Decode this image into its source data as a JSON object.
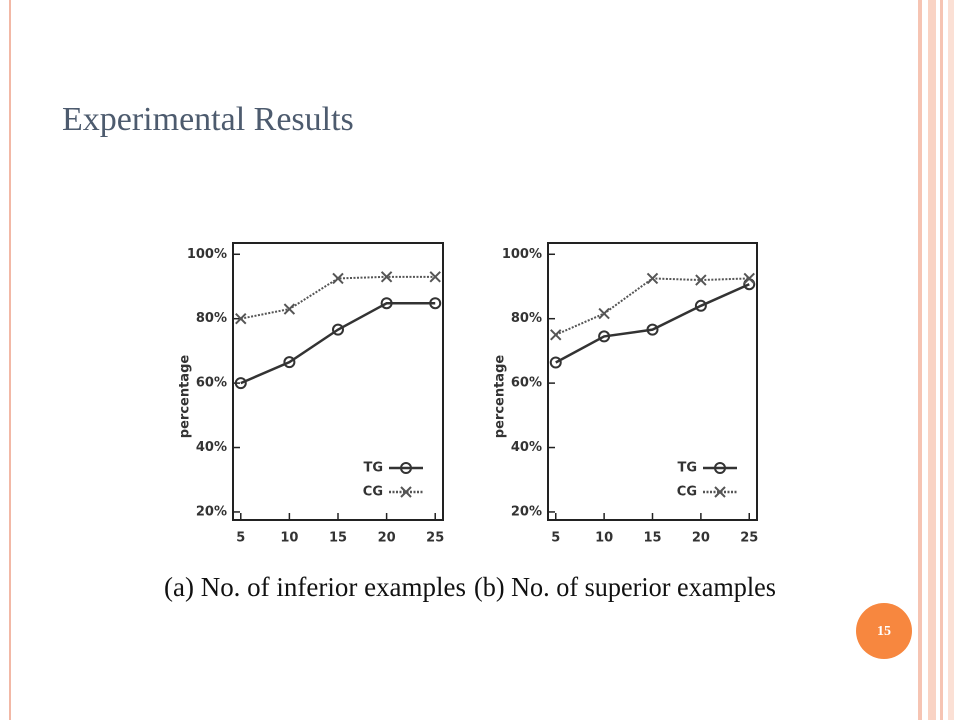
{
  "title": "Experimental Results",
  "page_number": "15",
  "chart_data": [
    {
      "type": "line",
      "xlabel": "(a) No. of inferior examples",
      "ylabel": "percentage",
      "x": [
        5,
        10,
        15,
        20,
        25
      ],
      "xlim": [
        4.2,
        25.8
      ],
      "xticks": [
        5,
        10,
        15,
        20,
        25
      ],
      "ylim": [
        17.5,
        103.5
      ],
      "yticks": [
        {
          "value": 20,
          "label": "20%"
        },
        {
          "value": 40,
          "label": "40%"
        },
        {
          "value": 60,
          "label": "60%"
        },
        {
          "value": 80,
          "label": "80%"
        },
        {
          "value": 100,
          "label": "100%"
        }
      ],
      "legend": "lower right",
      "series": [
        {
          "name": "TG",
          "color": "#333333",
          "marker": "circle",
          "line_style": "solid",
          "values": [
            60,
            66.5,
            76.6,
            84.8,
            84.8
          ]
        },
        {
          "name": "CG",
          "color": "#555555",
          "marker": "x",
          "line_style": "dotted",
          "values": [
            80,
            83,
            92.5,
            93,
            93
          ]
        }
      ]
    },
    {
      "type": "line",
      "xlabel": "(b) No. of superior examples",
      "ylabel": "percentage",
      "x": [
        5,
        10,
        15,
        20,
        25
      ],
      "xlim": [
        4.2,
        25.8
      ],
      "xticks": [
        5,
        10,
        15,
        20,
        25
      ],
      "ylim": [
        17.5,
        103.5
      ],
      "yticks": [
        {
          "value": 20,
          "label": "20%"
        },
        {
          "value": 40,
          "label": "40%"
        },
        {
          "value": 60,
          "label": "60%"
        },
        {
          "value": 80,
          "label": "80%"
        },
        {
          "value": 100,
          "label": "100%"
        }
      ],
      "legend": "lower right",
      "series": [
        {
          "name": "TG",
          "color": "#333333",
          "marker": "circle",
          "line_style": "solid",
          "values": [
            66.4,
            74.5,
            76.6,
            84,
            90.7
          ]
        },
        {
          "name": "CG",
          "color": "#555555",
          "marker": "x",
          "line_style": "dotted",
          "values": [
            75,
            81.6,
            92.5,
            92,
            92.5
          ]
        }
      ]
    }
  ]
}
